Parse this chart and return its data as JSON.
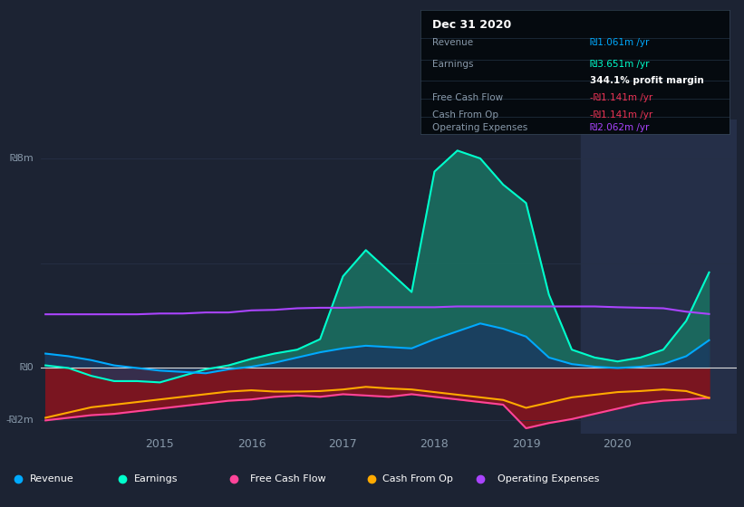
{
  "bg_color": "#1c2333",
  "chart_bg": "#1c2333",
  "ylim": [
    -2.5,
    9.5
  ],
  "xlim": [
    2013.7,
    2021.3
  ],
  "xticks": [
    2015,
    2016,
    2017,
    2018,
    2019,
    2020
  ],
  "years_x": [
    2013.75,
    2014.0,
    2014.25,
    2014.5,
    2014.75,
    2015.0,
    2015.25,
    2015.5,
    2015.75,
    2016.0,
    2016.25,
    2016.5,
    2016.75,
    2017.0,
    2017.25,
    2017.5,
    2017.75,
    2018.0,
    2018.25,
    2018.5,
    2018.75,
    2019.0,
    2019.25,
    2019.5,
    2019.75,
    2020.0,
    2020.25,
    2020.5,
    2020.75,
    2021.0
  ],
  "revenue": [
    0.55,
    0.45,
    0.3,
    0.1,
    0.0,
    -0.1,
    -0.15,
    -0.2,
    -0.05,
    0.05,
    0.2,
    0.4,
    0.6,
    0.75,
    0.85,
    0.8,
    0.75,
    1.1,
    1.4,
    1.7,
    1.5,
    1.2,
    0.4,
    0.15,
    0.05,
    0.0,
    0.05,
    0.15,
    0.45,
    1.061
  ],
  "earnings": [
    0.1,
    0.0,
    -0.3,
    -0.5,
    -0.5,
    -0.55,
    -0.3,
    -0.05,
    0.1,
    0.35,
    0.55,
    0.7,
    1.1,
    3.5,
    4.5,
    3.7,
    2.9,
    7.5,
    8.3,
    8.0,
    7.0,
    6.3,
    2.8,
    0.7,
    0.4,
    0.25,
    0.4,
    0.7,
    1.8,
    3.651
  ],
  "free_cash_flow": [
    -2.0,
    -1.9,
    -1.8,
    -1.75,
    -1.65,
    -1.55,
    -1.45,
    -1.35,
    -1.25,
    -1.2,
    -1.1,
    -1.05,
    -1.1,
    -1.0,
    -1.05,
    -1.1,
    -1.0,
    -1.1,
    -1.2,
    -1.3,
    -1.4,
    -2.3,
    -2.1,
    -1.95,
    -1.75,
    -1.55,
    -1.35,
    -1.25,
    -1.2,
    -1.141
  ],
  "cash_from_op": [
    -1.9,
    -1.7,
    -1.5,
    -1.4,
    -1.3,
    -1.2,
    -1.1,
    -1.0,
    -0.9,
    -0.85,
    -0.9,
    -0.9,
    -0.88,
    -0.82,
    -0.72,
    -0.78,
    -0.82,
    -0.92,
    -1.02,
    -1.12,
    -1.22,
    -1.52,
    -1.32,
    -1.12,
    -1.02,
    -0.92,
    -0.88,
    -0.82,
    -0.88,
    -1.141
  ],
  "op_expenses": [
    2.05,
    2.05,
    2.05,
    2.05,
    2.05,
    2.08,
    2.08,
    2.12,
    2.12,
    2.2,
    2.22,
    2.28,
    2.3,
    2.3,
    2.32,
    2.32,
    2.32,
    2.32,
    2.35,
    2.35,
    2.35,
    2.35,
    2.35,
    2.35,
    2.35,
    2.32,
    2.3,
    2.28,
    2.15,
    2.062
  ],
  "revenue_color": "#00aaff",
  "earnings_color": "#00ffcc",
  "earnings_fill_color": "#1a6e60",
  "revenue_fill_color": "#1a3a60",
  "free_cash_flow_color": "#ff4499",
  "cash_from_op_color": "#ffaa00",
  "op_expenses_color": "#aa44ff",
  "negative_fill_color": "#7a1520",
  "highlight_bg": "#252f48",
  "zero_line_color": "#dddddd",
  "grid_color": "#263045",
  "text_color": "#8899aa",
  "xlim_highlight_start": 2019.6,
  "info_box": {
    "title": "Dec 31 2020",
    "revenue_label": "Revenue",
    "revenue_val": "₪1.061m /yr",
    "earnings_label": "Earnings",
    "earnings_val": "₪3.651m /yr",
    "profit_margin": "344.1% profit margin",
    "fcf_label": "Free Cash Flow",
    "fcf_val": "-₪1.141m /yr",
    "cfop_label": "Cash From Op",
    "cfop_val": "-₪1.141m /yr",
    "opex_label": "Operating Expenses",
    "opex_val": "₪2.062m /yr"
  },
  "legend_items": [
    {
      "label": "Revenue",
      "color": "#00aaff"
    },
    {
      "label": "Earnings",
      "color": "#00ffcc"
    },
    {
      "label": "Free Cash Flow",
      "color": "#ff4499"
    },
    {
      "label": "Cash From Op",
      "color": "#ffaa00"
    },
    {
      "label": "Operating Expenses",
      "color": "#aa44ff"
    }
  ]
}
